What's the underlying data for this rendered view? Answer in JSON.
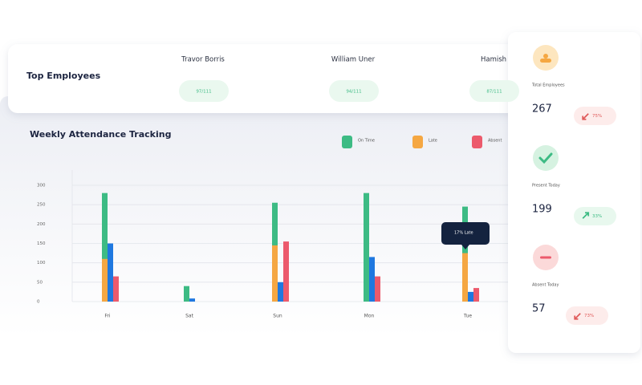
{
  "top_employees": {
    "title": "Top Employees",
    "employees": [
      {
        "name": "Travor Borris",
        "score": "97/111"
      },
      {
        "name": "William Uner",
        "score": "94/111"
      },
      {
        "name": "Hamish",
        "score": "87/111"
      }
    ]
  },
  "chart_data": {
    "type": "bar",
    "title": "Weekly Attendance Tracking",
    "categories": [
      "Fri",
      "Sat",
      "Sun",
      "Mon",
      "Tue"
    ],
    "series": [
      {
        "name": "On Time",
        "color": "#3dbb84",
        "values": [
          280,
          40,
          255,
          280,
          245
        ]
      },
      {
        "name": "Late",
        "color": "#f5a742",
        "values": [
          110,
          0,
          145,
          0,
          125
        ]
      },
      {
        "color": "#1f78e0",
        "values": [
          150,
          8,
          50,
          115,
          25
        ]
      },
      {
        "name": "Absent",
        "color": "#ec5a6c",
        "values": [
          65,
          0,
          155,
          65,
          35
        ]
      }
    ],
    "ylim": [
      0,
      300
    ],
    "yticks": [
      0,
      50,
      100,
      150,
      200,
      250,
      300
    ],
    "grid": true,
    "legend": "top-right",
    "annotation": "17% Late"
  },
  "stats": [
    {
      "label": "Total Employees",
      "value": "267",
      "change": "75%",
      "trend": "down"
    },
    {
      "label": "Present Today",
      "value": "199",
      "change": "33%",
      "trend": "up"
    },
    {
      "label": "Absent Today",
      "value": "57",
      "change": "73%",
      "trend": "down"
    }
  ]
}
